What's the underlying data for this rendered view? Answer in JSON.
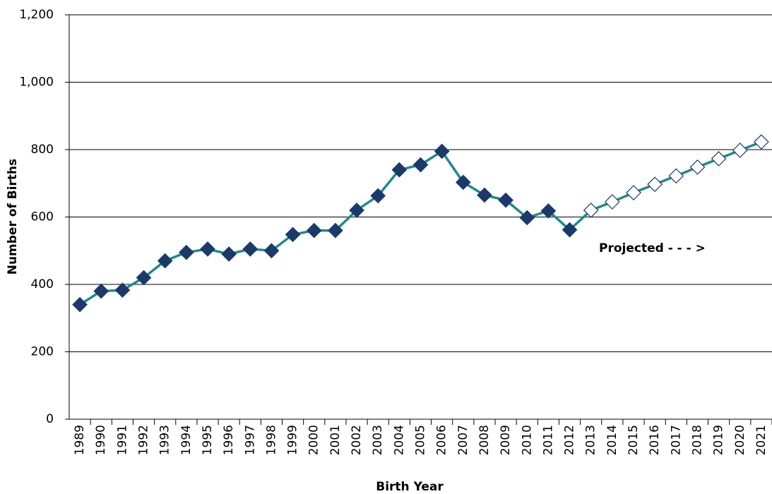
{
  "chart_data": {
    "type": "line",
    "x_label": "Birth Year",
    "y_label": "Number of Births",
    "annotation": "Projected - - - >",
    "categories": [
      "1989",
      "1990",
      "1991",
      "1992",
      "1993",
      "1994",
      "1995",
      "1996",
      "1997",
      "1998",
      "1999",
      "2000",
      "2001",
      "2002",
      "2003",
      "2004",
      "2005",
      "2006",
      "2007",
      "2008",
      "2009",
      "2010",
      "2011",
      "2012",
      "2013",
      "2014",
      "2015",
      "2016",
      "2017",
      "2018",
      "2019",
      "2020",
      "2021"
    ],
    "values": [
      340,
      380,
      383,
      420,
      470,
      495,
      505,
      490,
      505,
      500,
      548,
      560,
      560,
      620,
      663,
      740,
      755,
      795,
      703,
      665,
      650,
      598,
      618,
      562,
      620,
      645,
      672,
      697,
      722,
      748,
      773,
      798,
      823
    ],
    "line_color": "#1f8a8a",
    "marker_edge": "#1b3a6b",
    "marker_fill": [
      "#1b3a6b",
      "#1b3a6b",
      "#1b3a6b",
      "#1b3a6b",
      "#1b3a6b",
      "#1b3a6b",
      "#1b3a6b",
      "#1b3a6b",
      "#1b3a6b",
      "#1b3a6b",
      "#1b3a6b",
      "#1b3a6b",
      "#1b3a6b",
      "#1b3a6b",
      "#1b3a6b",
      "#1b3a6b",
      "#1b3a6b",
      "#1b3a6b",
      "#1b3a6b",
      "#1b3a6b",
      "#1b3a6b",
      "#1b3a6b",
      "#1b3a6b",
      "#1b3a6b",
      "#ffffff",
      "#ffffff",
      "#ffffff",
      "#ffffff",
      "#ffffff",
      "#ffffff",
      "#ffffff",
      "#ffffff",
      "#ffffff"
    ],
    "ylim": [
      0,
      1200
    ],
    "yticks": [
      0,
      200,
      400,
      600,
      800,
      {
        "value": 1000,
        "label": "1,000"
      },
      {
        "value": 1200,
        "label": "1,200"
      }
    ],
    "grid": true
  }
}
